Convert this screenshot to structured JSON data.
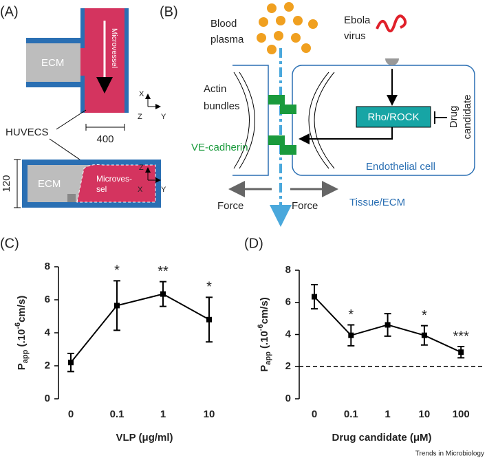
{
  "diagram_a": {
    "panel": "(A)",
    "ecm_top": "ECM",
    "microvessel": "Microvessel",
    "huvecs": "HUVECS",
    "width": "400",
    "height": "120",
    "ecm_bottom": "ECM",
    "microvessel_bottom": [
      "Microves-",
      "sel"
    ],
    "axes_top": [
      "X",
      "Z",
      "Y"
    ],
    "axes_bottom": [
      "Z",
      "X",
      "Y"
    ]
  },
  "diagram_b": {
    "panel": "(B)",
    "plasma": [
      "Blood",
      "plasma"
    ],
    "virus": [
      "Ebola",
      "virus"
    ],
    "actin": [
      "Actin",
      "bundles"
    ],
    "cadherin": "VE-cadherin",
    "pathway": "Rho/ROCK",
    "drug": [
      "Drug",
      "candidate"
    ],
    "cell": "Endothelial cell",
    "tissue": "Tissue/ECM",
    "force_left": "Force",
    "force_right": "Force"
  },
  "chart_data": [
    {
      "type": "line",
      "panel": "(C)",
      "xlabel": "VLP (μg/ml)",
      "ylabel": {
        "main": "P",
        "sub": "app",
        "mid": " (.10",
        "sup": "-6",
        "end": "cm/s)"
      },
      "categories": [
        "0",
        "0.1",
        "1",
        "10"
      ],
      "values": [
        2.2,
        5.65,
        6.35,
        4.8
      ],
      "errors": [
        0.55,
        1.5,
        0.75,
        1.35
      ],
      "significance": [
        null,
        "*",
        "**",
        "*"
      ],
      "color": "#000000",
      "ylim": [
        0,
        8
      ],
      "yticks": [
        0,
        2,
        4,
        6,
        8
      ]
    },
    {
      "type": "line",
      "panel": "(D)",
      "xlabel": "Drug candidate (μM)",
      "ylabel": {
        "main": "P",
        "sub": "app",
        "mid": " (.10",
        "sup": "-6",
        "end": "cm/s)"
      },
      "categories": [
        "0",
        "0.1",
        "1",
        "10",
        "100"
      ],
      "values": [
        6.35,
        3.95,
        4.6,
        3.95,
        2.9
      ],
      "errors": [
        0.75,
        0.65,
        0.7,
        0.6,
        0.35
      ],
      "significance": [
        null,
        "*",
        null,
        "*",
        "***"
      ],
      "color": "#000000",
      "ylim": [
        0,
        8
      ],
      "yticks": [
        0,
        2,
        4,
        6,
        8
      ],
      "reference_line": 2
    }
  ],
  "footer": "Trends in Microbiology"
}
